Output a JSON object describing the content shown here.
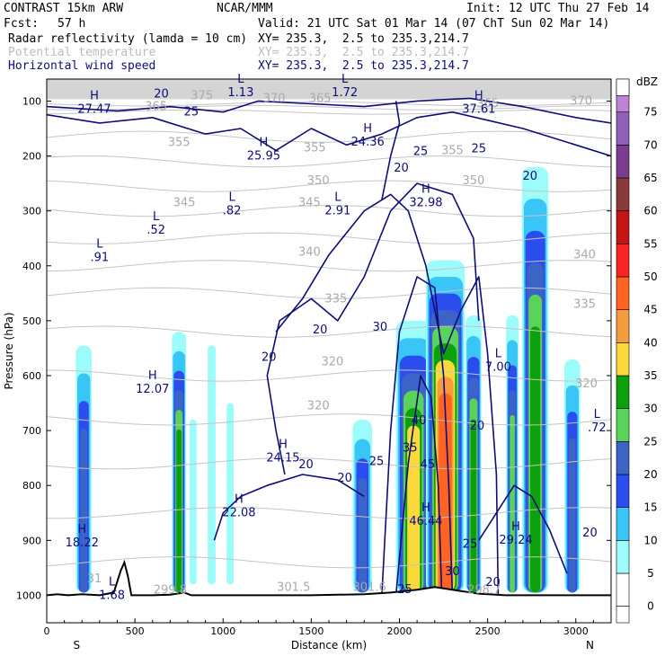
{
  "header": {
    "model": "CONTRAST 15km ARW",
    "center": "NCAR/MMM",
    "init": "Init: 12 UTC Thu 27 Feb 14",
    "fcst_label": "Fcst:",
    "fcst_value": "57 h",
    "valid": "Valid: 21 UTC Sat 01 Mar 14 (07 ChT Sun 02 Mar 14)",
    "fields": [
      {
        "name": "Radar reflectivity (lamda = 10 cm)",
        "xy": "XY= 235.3,  2.5 to 235.3,214.7",
        "color": "#000000"
      },
      {
        "name": "Potential temperature",
        "xy": "XY= 235.3,  2.5 to 235.3,214.7",
        "color": "#bdbdbd"
      },
      {
        "name": "Horizontal wind speed",
        "xy": "XY= 235.3,  2.5 to 235.3,214.7",
        "color": "#0d0d7a"
      }
    ]
  },
  "chart_data": {
    "type": "heatmap",
    "xlabel": "Distance (km)",
    "ylabel": "Pressure (hPa)",
    "xlim": [
      0,
      3200
    ],
    "ylim": [
      1050,
      60
    ],
    "x_ticks": [
      0,
      500,
      1000,
      1500,
      2000,
      2500,
      3000
    ],
    "y_ticks": [
      100,
      200,
      300,
      400,
      500,
      600,
      700,
      800,
      900,
      1000
    ],
    "x_end_labels": {
      "left": "S",
      "right": "N"
    },
    "colorbar": {
      "unit": "dBZ",
      "levels": [
        0,
        5,
        10,
        15,
        20,
        25,
        30,
        35,
        40,
        45,
        50,
        55,
        60,
        65,
        70,
        75
      ],
      "colors": [
        "#ffffff",
        "#9cfcfc",
        "#39c6f6",
        "#2b4dee",
        "#3c63c6",
        "#5ad35a",
        "#0ca00c",
        "#fbd93a",
        "#f79c3c",
        "#ff6422",
        "#fb2424",
        "#c41414",
        "#8a3a3a",
        "#7a3c8e",
        "#9060b8",
        "#be82d6"
      ]
    },
    "reflectivity_columns": [
      {
        "x": 210,
        "width": 90,
        "top": 545,
        "base": 995,
        "max_dbz": 20
      },
      {
        "x": 750,
        "width": 80,
        "top": 520,
        "base": 995,
        "max_dbz": 30
      },
      {
        "x": 830,
        "width": 40,
        "top": 680,
        "base": 980,
        "max_dbz": 5
      },
      {
        "x": 935,
        "width": 45,
        "top": 545,
        "base": 980,
        "max_dbz": 5
      },
      {
        "x": 1040,
        "width": 40,
        "top": 650,
        "base": 980,
        "max_dbz": 5
      },
      {
        "x": 1790,
        "width": 110,
        "top": 680,
        "base": 995,
        "max_dbz": 20
      },
      {
        "x": 2080,
        "width": 200,
        "top": 500,
        "base": 995,
        "max_dbz": 35
      },
      {
        "x": 2260,
        "width": 220,
        "top": 390,
        "base": 995,
        "max_dbz": 45
      },
      {
        "x": 2420,
        "width": 90,
        "top": 490,
        "base": 995,
        "max_dbz": 30
      },
      {
        "x": 2640,
        "width": 70,
        "top": 490,
        "base": 995,
        "max_dbz": 25
      },
      {
        "x": 2770,
        "width": 150,
        "top": 220,
        "base": 995,
        "max_dbz": 30
      },
      {
        "x": 2980,
        "width": 90,
        "top": 570,
        "base": 995,
        "max_dbz": 20
      }
    ],
    "theta_labels": [
      {
        "x": 880,
        "p": 90,
        "text": "375"
      },
      {
        "x": 1290,
        "p": 95,
        "text": "370"
      },
      {
        "x": 1550,
        "p": 95,
        "text": "365"
      },
      {
        "x": 620,
        "p": 110,
        "text": "365"
      },
      {
        "x": 3030,
        "p": 100,
        "text": "370"
      },
      {
        "x": 2500,
        "p": 105,
        "text": "365"
      },
      {
        "x": 750,
        "p": 175,
        "text": "355"
      },
      {
        "x": 1520,
        "p": 185,
        "text": "355"
      },
      {
        "x": 2300,
        "p": 190,
        "text": "355"
      },
      {
        "x": 1540,
        "p": 245,
        "text": "350"
      },
      {
        "x": 2420,
        "p": 245,
        "text": "350"
      },
      {
        "x": 780,
        "p": 285,
        "text": "345"
      },
      {
        "x": 1490,
        "p": 285,
        "text": "345"
      },
      {
        "x": 1490,
        "p": 375,
        "text": "340"
      },
      {
        "x": 3050,
        "p": 380,
        "text": "340"
      },
      {
        "x": 1640,
        "p": 460,
        "text": "335"
      },
      {
        "x": 3050,
        "p": 470,
        "text": "335"
      },
      {
        "x": 1620,
        "p": 575,
        "text": "320"
      },
      {
        "x": 1540,
        "p": 655,
        "text": "320"
      },
      {
        "x": 3060,
        "p": 615,
        "text": "320"
      },
      {
        "x": 1400,
        "p": 985,
        "text": "301.5"
      },
      {
        "x": 1830,
        "p": 985,
        "text": "301.6"
      },
      {
        "x": 700,
        "p": 990,
        "text": "299.8"
      },
      {
        "x": 270,
        "p": 970,
        "text": "31"
      },
      {
        "x": 2480,
        "p": 990,
        "text": "298.7"
      }
    ],
    "wind_labels": [
      {
        "x": 650,
        "p": 85,
        "text": "20"
      },
      {
        "x": 820,
        "p": 118,
        "text": "25"
      },
      {
        "x": 2120,
        "p": 190,
        "text": "25"
      },
      {
        "x": 2450,
        "p": 185,
        "text": "25"
      },
      {
        "x": 2010,
        "p": 220,
        "text": "20"
      },
      {
        "x": 1550,
        "p": 515,
        "text": "20"
      },
      {
        "x": 1260,
        "p": 565,
        "text": "20"
      },
      {
        "x": 1890,
        "p": 510,
        "text": "30"
      },
      {
        "x": 2740,
        "p": 235,
        "text": "20"
      },
      {
        "x": 2110,
        "p": 680,
        "text": "40"
      },
      {
        "x": 2060,
        "p": 730,
        "text": "35"
      },
      {
        "x": 1870,
        "p": 755,
        "text": "25"
      },
      {
        "x": 1690,
        "p": 785,
        "text": "20"
      },
      {
        "x": 1470,
        "p": 760,
        "text": "20"
      },
      {
        "x": 2160,
        "p": 760,
        "text": "45"
      },
      {
        "x": 2440,
        "p": 690,
        "text": "20"
      },
      {
        "x": 2400,
        "p": 905,
        "text": "25"
      },
      {
        "x": 2300,
        "p": 955,
        "text": "30"
      },
      {
        "x": 2030,
        "p": 988,
        "text": "25"
      },
      {
        "x": 2530,
        "p": 975,
        "text": "20"
      },
      {
        "x": 3080,
        "p": 885,
        "text": "20"
      }
    ],
    "extrema": [
      {
        "letter": "H",
        "value": "27.47",
        "x": 270,
        "p": 100
      },
      {
        "letter": "L",
        "value": "1.13",
        "x": 1100,
        "p": 70
      },
      {
        "letter": "L",
        "value": "1.72",
        "x": 1690,
        "p": 70
      },
      {
        "letter": "H",
        "value": "37.61",
        "x": 2450,
        "p": 100
      },
      {
        "letter": "H",
        "value": "24.36",
        "x": 1820,
        "p": 160
      },
      {
        "letter": "H",
        "value": "25.95",
        "x": 1230,
        "p": 185
      },
      {
        "letter": "H",
        "value": "32.98",
        "x": 2150,
        "p": 270
      },
      {
        "letter": "L",
        "value": "2.91",
        "x": 1650,
        "p": 285
      },
      {
        "letter": "L",
        "value": ".82",
        "x": 1050,
        "p": 285
      },
      {
        "letter": "L",
        "value": ".52",
        "x": 620,
        "p": 320
      },
      {
        "letter": "L",
        "value": ".91",
        "x": 300,
        "p": 370
      },
      {
        "letter": "L",
        "value": "7.00",
        "x": 2560,
        "p": 570
      },
      {
        "letter": "H",
        "value": "12.07",
        "x": 600,
        "p": 610
      },
      {
        "letter": "L",
        "value": ".72",
        "x": 3120,
        "p": 680
      },
      {
        "letter": "H",
        "value": "24.15",
        "x": 1340,
        "p": 735
      },
      {
        "letter": "H",
        "value": "22.08",
        "x": 1090,
        "p": 835
      },
      {
        "letter": "H",
        "value": "46.44",
        "x": 2150,
        "p": 850
      },
      {
        "letter": "H",
        "value": "29.24",
        "x": 2660,
        "p": 885
      },
      {
        "letter": "H",
        "value": "18.22",
        "x": 200,
        "p": 890
      },
      {
        "letter": "L",
        "value": "1.68",
        "x": 370,
        "p": 985
      }
    ],
    "terrain": [
      [
        0,
        1000
      ],
      [
        60,
        998
      ],
      [
        120,
        1000
      ],
      [
        200,
        998
      ],
      [
        300,
        1000
      ],
      [
        380,
        995
      ],
      [
        420,
        955
      ],
      [
        440,
        940
      ],
      [
        460,
        965
      ],
      [
        480,
        1000
      ],
      [
        600,
        1000
      ],
      [
        700,
        999
      ],
      [
        780,
        995
      ],
      [
        820,
        1000
      ],
      [
        1000,
        1000
      ],
      [
        1500,
        1000
      ],
      [
        1800,
        998
      ],
      [
        1950,
        995
      ],
      [
        2100,
        990
      ],
      [
        2200,
        985
      ],
      [
        2300,
        990
      ],
      [
        2450,
        997
      ],
      [
        2600,
        1000
      ],
      [
        3200,
        1000
      ]
    ]
  }
}
